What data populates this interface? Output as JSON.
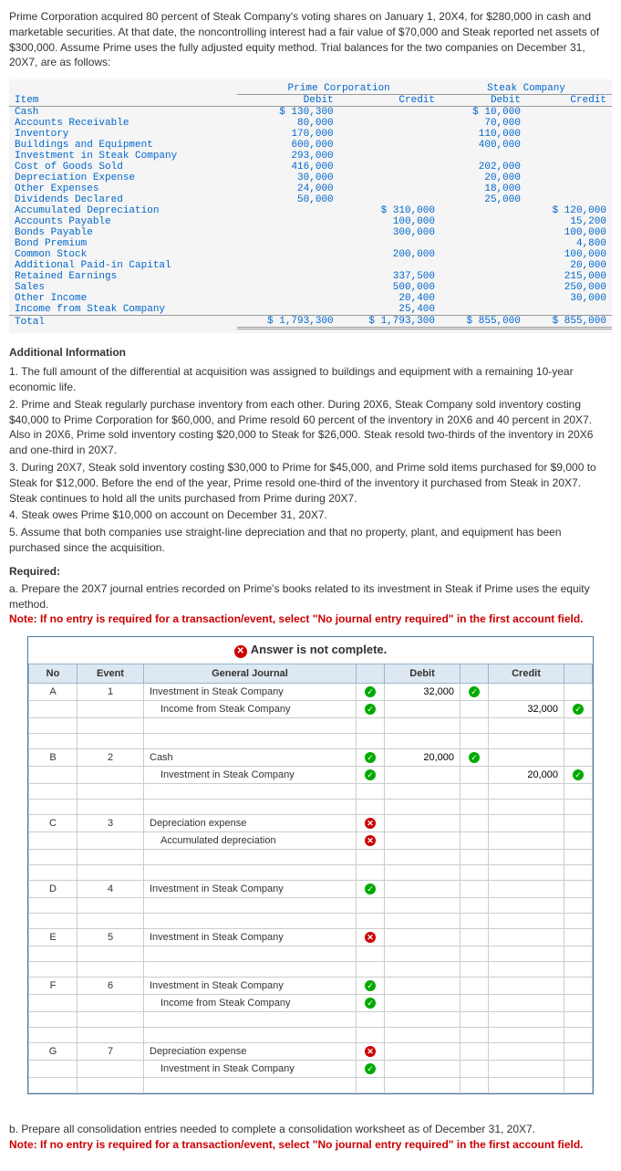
{
  "intro": "Prime Corporation acquired 80 percent of Steak Company's voting shares on January 1, 20X4, for $280,000 in cash and marketable securities. At that date, the noncontrolling interest had a fair value of $70,000 and Steak reported net assets of $300,000. Assume Prime uses the fully adjusted equity method. Trial balances for the two companies on December 31, 20X7, are as follows:",
  "tb": {
    "companies": [
      "Prime Corporation",
      "Steak Company"
    ],
    "cols": [
      "Debit",
      "Credit",
      "Debit",
      "Credit"
    ],
    "rows": [
      {
        "item": "Cash",
        "v": [
          "$ 130,300",
          "",
          "$ 10,000",
          ""
        ]
      },
      {
        "item": "Accounts Receivable",
        "v": [
          "80,000",
          "",
          "70,000",
          ""
        ]
      },
      {
        "item": "Inventory",
        "v": [
          "170,000",
          "",
          "110,000",
          ""
        ]
      },
      {
        "item": "Buildings and Equipment",
        "v": [
          "600,000",
          "",
          "400,000",
          ""
        ]
      },
      {
        "item": "Investment in Steak Company",
        "v": [
          "293,000",
          "",
          "",
          ""
        ]
      },
      {
        "item": "Cost of Goods Sold",
        "v": [
          "416,000",
          "",
          "202,000",
          ""
        ]
      },
      {
        "item": "Depreciation Expense",
        "v": [
          "30,000",
          "",
          "20,000",
          ""
        ]
      },
      {
        "item": "Other Expenses",
        "v": [
          "24,000",
          "",
          "18,000",
          ""
        ]
      },
      {
        "item": "Dividends Declared",
        "v": [
          "50,000",
          "",
          "25,000",
          ""
        ]
      },
      {
        "item": "Accumulated Depreciation",
        "v": [
          "",
          "$ 310,000",
          "",
          "$ 120,000"
        ]
      },
      {
        "item": "Accounts Payable",
        "v": [
          "",
          "100,000",
          "",
          "15,200"
        ]
      },
      {
        "item": "Bonds Payable",
        "v": [
          "",
          "300,000",
          "",
          "100,000"
        ]
      },
      {
        "item": "Bond Premium",
        "v": [
          "",
          "",
          "",
          "4,800"
        ]
      },
      {
        "item": "Common Stock",
        "v": [
          "",
          "200,000",
          "",
          "100,000"
        ]
      },
      {
        "item": "Additional Paid-in Capital",
        "v": [
          "",
          "",
          "",
          "20,000"
        ]
      },
      {
        "item": "Retained Earnings",
        "v": [
          "",
          "337,500",
          "",
          "215,000"
        ]
      },
      {
        "item": "Sales",
        "v": [
          "",
          "500,000",
          "",
          "250,000"
        ]
      },
      {
        "item": "Other Income",
        "v": [
          "",
          "20,400",
          "",
          "30,000"
        ]
      },
      {
        "item": "Income from Steak Company",
        "v": [
          "",
          "25,400",
          "",
          ""
        ]
      }
    ],
    "total_label": "Total",
    "totals": [
      "$ 1,793,300",
      "$ 1,793,300",
      "$ 855,000",
      "$ 855,000"
    ]
  },
  "addl_header": "Additional Information",
  "info": [
    "1. The full amount of the differential at acquisition was assigned to buildings and equipment with a remaining 10-year economic life.",
    "2. Prime and Steak regularly purchase inventory from each other. During 20X6, Steak Company sold inventory costing $40,000 to Prime Corporation for $60,000, and Prime resold 60 percent of the inventory in 20X6 and 40 percent in 20X7. Also in 20X6, Prime sold inventory costing $20,000 to Steak for $26,000. Steak resold two-thirds of the inventory in 20X6 and one-third in 20X7.",
    "3. During 20X7, Steak sold inventory costing $30,000 to Prime for $45,000, and Prime sold items purchased for $9,000 to Steak for $12,000. Before the end of the year, Prime resold one-third of the inventory it purchased from Steak in 20X7. Steak continues to hold all the units purchased from Prime during 20X7.",
    "4. Steak owes Prime $10,000 on account on December 31, 20X7.",
    "5. Assume that both companies use straight-line depreciation and that no property, plant, and equipment has been purchased since the acquisition."
  ],
  "required_label": "Required:",
  "part_a": "a. Prepare the 20X7 journal entries recorded on Prime's books related to its investment in Steak if Prime uses the equity method.",
  "note": "Note: If no entry is required for a transaction/event, select \"No journal entry required\" in the first account field.",
  "answer_hdr": "Answer is not complete.",
  "journal": {
    "cols": [
      "No",
      "Event",
      "General Journal",
      "Debit",
      "Credit"
    ],
    "groups": [
      {
        "no": "A",
        "ev": "1",
        "lines": [
          {
            "acct": "Investment in Steak Company",
            "s": "ok",
            "d": "32,000",
            "ds": "ok",
            "c": "",
            "cs": ""
          },
          {
            "acct": "Income from Steak Company",
            "s": "ok",
            "d": "",
            "ds": "",
            "c": "32,000",
            "cs": "ok"
          }
        ]
      },
      {
        "no": "B",
        "ev": "2",
        "lines": [
          {
            "acct": "Cash",
            "s": "ok",
            "d": "20,000",
            "ds": "ok",
            "c": "",
            "cs": ""
          },
          {
            "acct": "Investment in Steak Company",
            "s": "ok",
            "d": "",
            "ds": "",
            "c": "20,000",
            "cs": "ok"
          }
        ]
      },
      {
        "no": "C",
        "ev": "3",
        "lines": [
          {
            "acct": "Depreciation expense",
            "s": "x",
            "d": "",
            "ds": "",
            "c": "",
            "cs": ""
          },
          {
            "acct": "Accumulated depreciation",
            "s": "x",
            "d": "",
            "ds": "",
            "c": "",
            "cs": ""
          }
        ]
      },
      {
        "no": "D",
        "ev": "4",
        "lines": [
          {
            "acct": "Investment in Steak Company",
            "s": "ok",
            "d": "",
            "ds": "",
            "c": "",
            "cs": ""
          }
        ]
      },
      {
        "no": "E",
        "ev": "5",
        "lines": [
          {
            "acct": "Investment in Steak Company",
            "s": "x",
            "d": "",
            "ds": "",
            "c": "",
            "cs": ""
          }
        ]
      },
      {
        "no": "F",
        "ev": "6",
        "lines": [
          {
            "acct": "Investment in Steak Company",
            "s": "ok",
            "d": "",
            "ds": "",
            "c": "",
            "cs": ""
          },
          {
            "acct": "Income from Steak Company",
            "s": "ok",
            "d": "",
            "ds": "",
            "c": "",
            "cs": ""
          }
        ]
      },
      {
        "no": "G",
        "ev": "7",
        "lines": [
          {
            "acct": "Depreciation expense",
            "s": "x",
            "d": "",
            "ds": "",
            "c": "",
            "cs": ""
          },
          {
            "acct": "Investment in Steak Company",
            "s": "ok",
            "d": "",
            "ds": "",
            "c": "",
            "cs": ""
          }
        ]
      }
    ]
  },
  "part_b": "b. Prepare all consolidation entries needed to complete a consolidation worksheet as of December 31, 20X7.",
  "note_b": "Note: If no entry is required for a transaction/event, select \"No journal entry required\" in the first account field."
}
